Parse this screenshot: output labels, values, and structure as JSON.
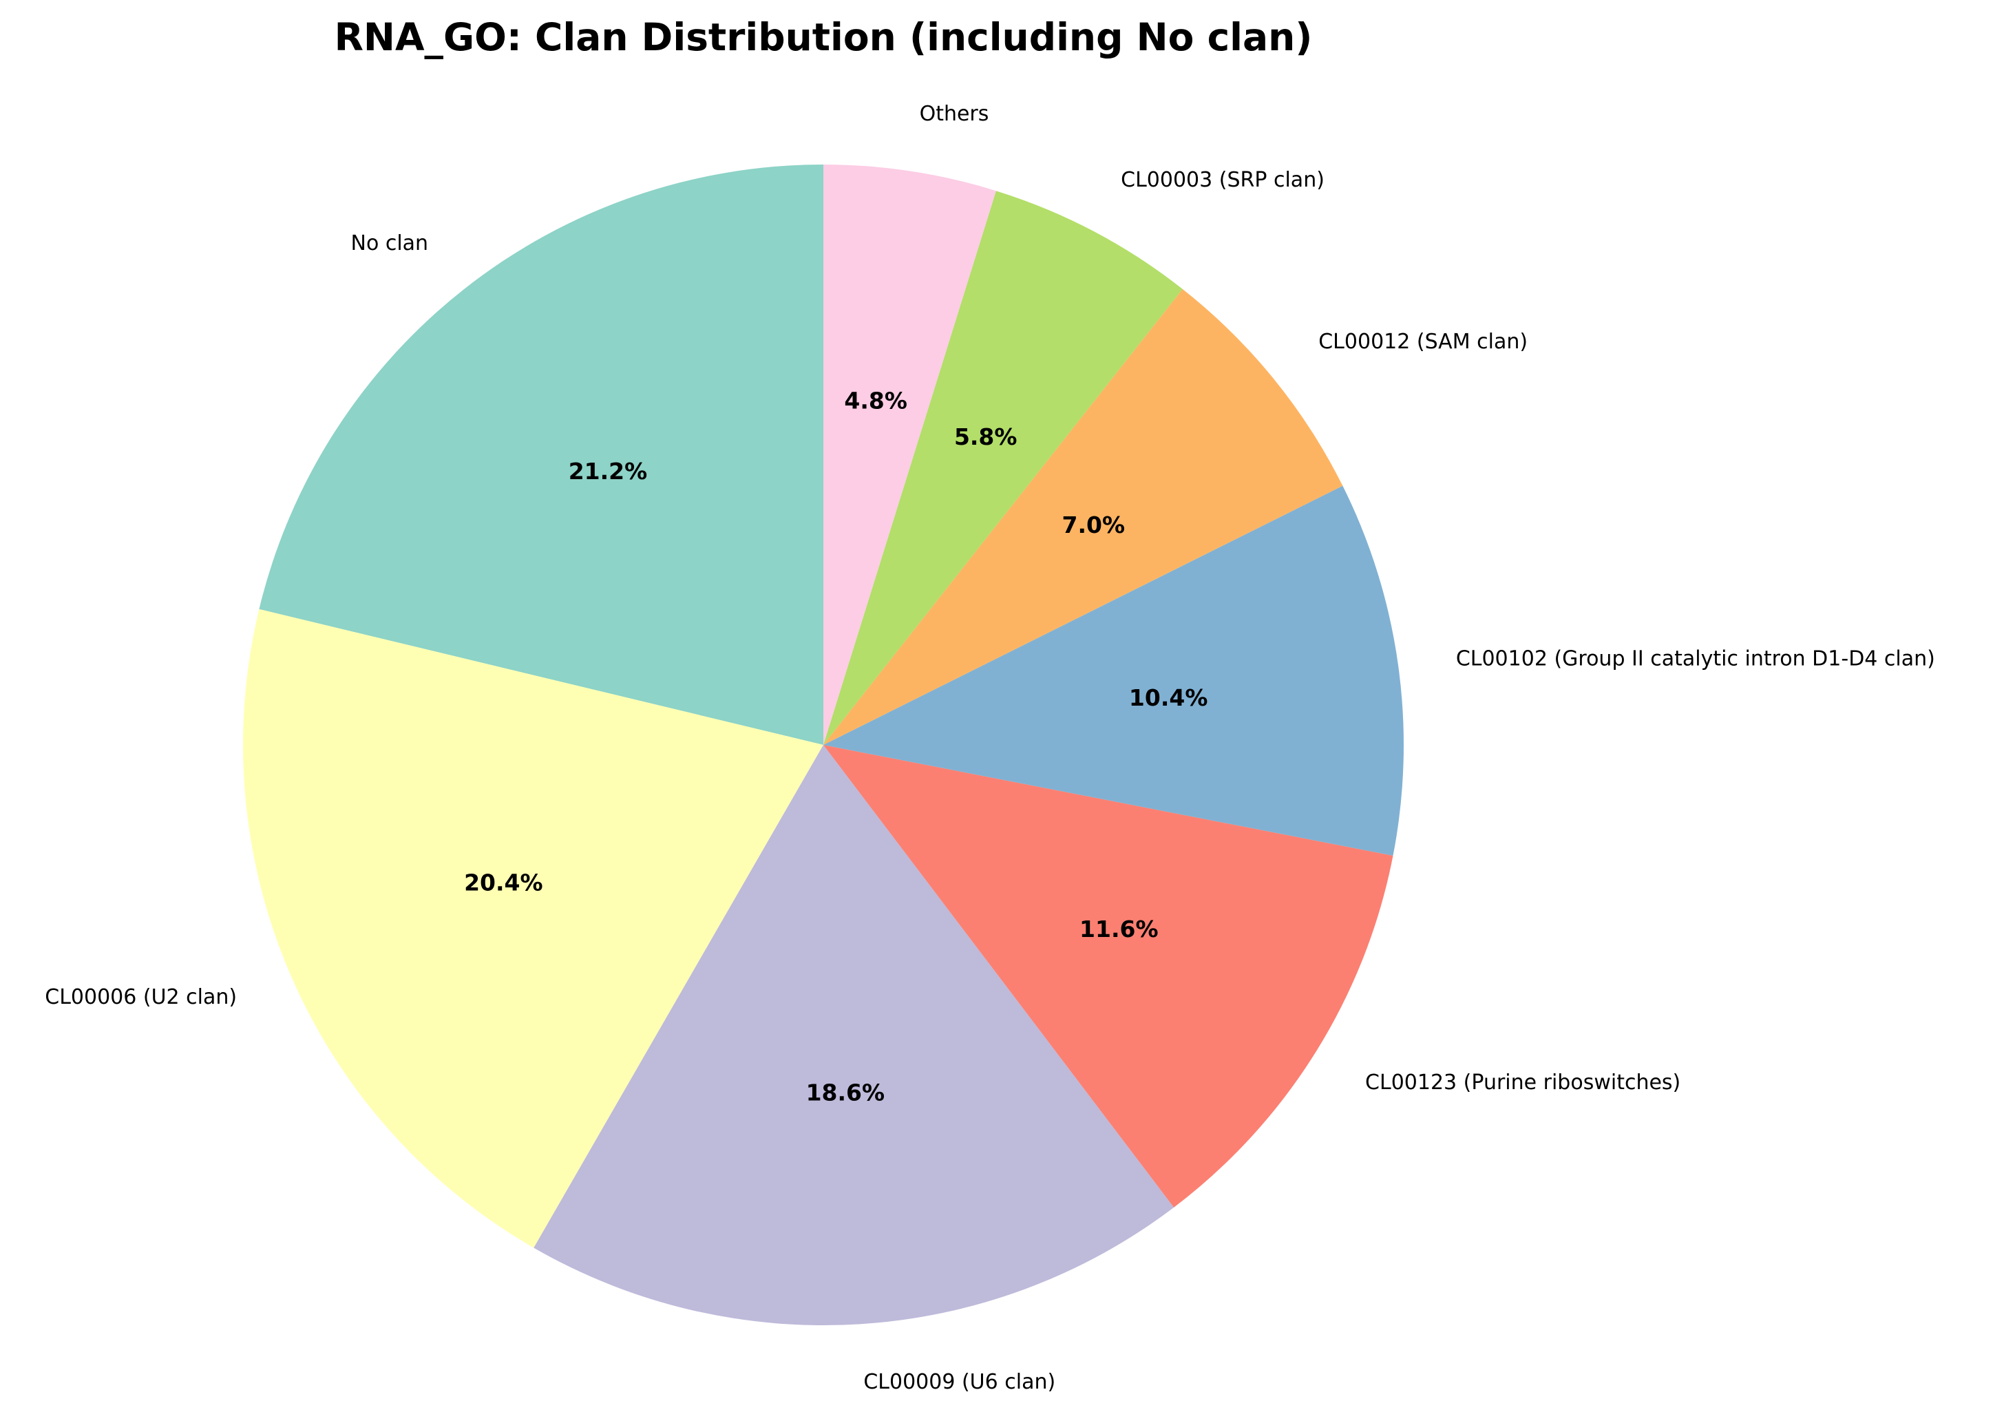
{
  "chart_data": {
    "type": "pie",
    "title": "RNA_GO: Clan Distribution (including No clan)",
    "start_angle_deg": 90,
    "direction": "counterclockwise",
    "slices": [
      {
        "label": "No clan",
        "percent": 21.2,
        "percent_label": "21.2%",
        "color": "#8dd3c7"
      },
      {
        "label": "CL00006 (U2 clan)",
        "percent": 20.4,
        "percent_label": "20.4%",
        "color": "#ffffb3"
      },
      {
        "label": "CL00009 (U6 clan)",
        "percent": 18.6,
        "percent_label": "18.6%",
        "color": "#bebada"
      },
      {
        "label": "CL00123 (Purine riboswitches)",
        "percent": 11.6,
        "percent_label": "11.6%",
        "color": "#fb8072"
      },
      {
        "label": "CL00102 (Group II catalytic intron D1-D4 clan)",
        "percent": 10.4,
        "percent_label": "10.4%",
        "color": "#80b1d3"
      },
      {
        "label": "CL00012 (SAM clan)",
        "percent": 7.0,
        "percent_label": "7.0%",
        "color": "#fdb462"
      },
      {
        "label": "CL00003 (SRP clan)",
        "percent": 5.8,
        "percent_label": "5.8%",
        "color": "#b3de69"
      },
      {
        "label": "Others",
        "percent": 4.8,
        "percent_label": "4.8%",
        "color": "#fccde5"
      }
    ]
  }
}
